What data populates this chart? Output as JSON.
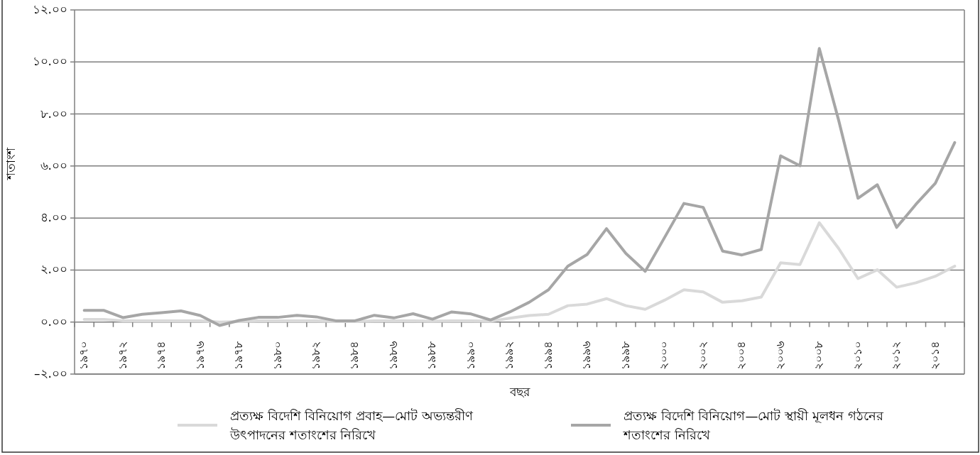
{
  "chart_data": {
    "type": "line",
    "xlabel": "বছর",
    "ylabel": "শতাংশ",
    "categories": [
      "১৯৭০",
      null,
      "১৯৭২",
      null,
      "১৯৭৪",
      null,
      "১৯৭৬",
      null,
      "১৯৭৮",
      null,
      "১৯৮০",
      null,
      "১৯৮২",
      null,
      "১৯৮৪",
      null,
      "১৯৮৬",
      null,
      "১৯৮৮",
      null,
      "১৯৯০",
      null,
      "১৯৯২",
      null,
      "১৯৯৪",
      null,
      "১৯৯৬",
      null,
      "১৯৯৮",
      null,
      "২০০০",
      null,
      "২০০২",
      null,
      "২০০৪",
      null,
      "২০০৬",
      null,
      "২০০৮",
      null,
      "২০১০",
      null,
      "২০১২",
      null,
      "২০১৪",
      null
    ],
    "series": [
      {
        "name": "প্রত্যক্ষ বিদেশি বিনিয়োগ প্রবাহ—মোট অভ্যন্তরীণ উৎপাদনের শতাংশের নিরিখে",
        "color": "#d9d9d9",
        "values": [
          0.1,
          0.1,
          0.05,
          0.05,
          0.05,
          0.05,
          0.05,
          0,
          0.02,
          0.05,
          0.05,
          0.05,
          0.05,
          0.02,
          0.02,
          0.05,
          0.05,
          0.05,
          0.03,
          0.05,
          0.05,
          0.03,
          0.15,
          0.25,
          0.3,
          0.63,
          0.69,
          0.9,
          0.63,
          0.49,
          0.84,
          1.24,
          1.16,
          0.76,
          0.82,
          0.96,
          2.28,
          2.21,
          3.82,
          2.83,
          1.67,
          2.01,
          1.34,
          1.51,
          1.76,
          2.15
        ]
      },
      {
        "name": "প্রত্যক্ষ বিদেশি বিনিয়োগ—মোট স্থায়ী মূলধন গঠনের শতাংশের নিরিখে",
        "color": "#a6a6a6",
        "values": [
          0.45,
          0.45,
          0.17,
          0.3,
          0.36,
          0.43,
          0.25,
          -0.13,
          0.06,
          0.18,
          0.18,
          0.26,
          0.2,
          0.05,
          0.05,
          0.26,
          0.16,
          0.32,
          0.11,
          0.39,
          0.31,
          0.08,
          0.39,
          0.76,
          1.24,
          2.15,
          2.6,
          3.59,
          2.64,
          1.95,
          3.25,
          4.56,
          4.41,
          2.73,
          2.58,
          2.79,
          6.39,
          6.01,
          10.52,
          7.76,
          4.76,
          5.28,
          3.64,
          4.53,
          5.34,
          6.9
        ]
      }
    ],
    "ylim": [
      -2,
      12
    ],
    "yticks": [
      {
        "value": -2,
        "label": "–২.০০"
      },
      {
        "value": 0,
        "label": "০.০০"
      },
      {
        "value": 2,
        "label": "২.০০"
      },
      {
        "value": 4,
        "label": "৪.০০"
      },
      {
        "value": 6,
        "label": "৬.০০"
      },
      {
        "value": 8,
        "label": "৮.০০"
      },
      {
        "value": 10,
        "label": "১০.০০"
      },
      {
        "value": 12,
        "label": "১২.০০"
      }
    ],
    "grid": "y",
    "legend": "bottom",
    "marker": "none",
    "line_style": "solid"
  }
}
